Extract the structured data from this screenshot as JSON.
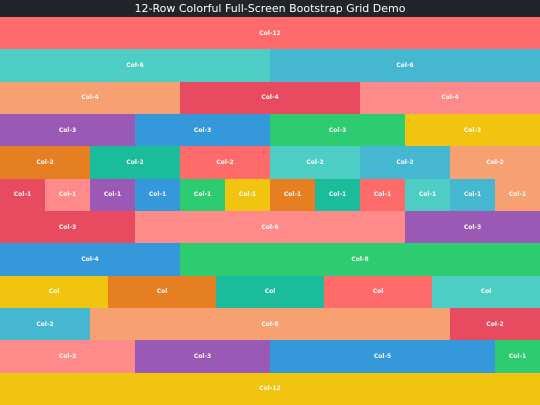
{
  "window": {
    "title": "12-Row Colorful Full-Screen Bootstrap Grid Demo"
  },
  "rows": [
    [
      {
        "label": "Col-12",
        "span": 12,
        "color": "#ff6b6b"
      }
    ],
    [
      {
        "label": "Col-6",
        "span": 6,
        "color": "#4ecdc4"
      },
      {
        "label": "Col-6",
        "span": 6,
        "color": "#45b7d1"
      }
    ],
    [
      {
        "label": "Col-4",
        "span": 4,
        "color": "#f7a072"
      },
      {
        "label": "Col-4",
        "span": 4,
        "color": "#e84a5f"
      },
      {
        "label": "Col-4",
        "span": 4,
        "color": "#ff8a8a"
      }
    ],
    [
      {
        "label": "Col-3",
        "span": 3,
        "color": "#9b59b6"
      },
      {
        "label": "Col-3",
        "span": 3,
        "color": "#3498db"
      },
      {
        "label": "Col-3",
        "span": 3,
        "color": "#2ecc71"
      },
      {
        "label": "Col-3",
        "span": 3,
        "color": "#f1c40f"
      }
    ],
    [
      {
        "label": "Col-2",
        "span": 2,
        "color": "#e67e22"
      },
      {
        "label": "Col-2",
        "span": 2,
        "color": "#1abc9c"
      },
      {
        "label": "Col-2",
        "span": 2,
        "color": "#ff6b6b"
      },
      {
        "label": "Col-2",
        "span": 2,
        "color": "#4ecdc4"
      },
      {
        "label": "Col-2",
        "span": 2,
        "color": "#45b7d1"
      },
      {
        "label": "Col-2",
        "span": 2,
        "color": "#f7a072"
      }
    ],
    [
      {
        "label": "Col-1",
        "span": 1,
        "color": "#e84a5f"
      },
      {
        "label": "Col-1",
        "span": 1,
        "color": "#ff8a8a"
      },
      {
        "label": "Col-1",
        "span": 1,
        "color": "#9b59b6"
      },
      {
        "label": "Col-1",
        "span": 1,
        "color": "#3498db"
      },
      {
        "label": "Col-1",
        "span": 1,
        "color": "#2ecc71"
      },
      {
        "label": "Col-1",
        "span": 1,
        "color": "#f1c40f"
      },
      {
        "label": "Col-1",
        "span": 1,
        "color": "#e67e22"
      },
      {
        "label": "Col-1",
        "span": 1,
        "color": "#1abc9c"
      },
      {
        "label": "Col-1",
        "span": 1,
        "color": "#ff6b6b"
      },
      {
        "label": "Col-1",
        "span": 1,
        "color": "#4ecdc4"
      },
      {
        "label": "Col-1",
        "span": 1,
        "color": "#45b7d1"
      },
      {
        "label": "Col-1",
        "span": 1,
        "color": "#f7a072"
      }
    ],
    [
      {
        "label": "Col-3",
        "span": 3,
        "color": "#e84a5f"
      },
      {
        "label": "Col-6",
        "span": 6,
        "color": "#ff8a8a"
      },
      {
        "label": "Col-3",
        "span": 3,
        "color": "#9b59b6"
      }
    ],
    [
      {
        "label": "Col-4",
        "span": 4,
        "color": "#3498db"
      },
      {
        "label": "Col-8",
        "span": 8,
        "color": "#2ecc71"
      }
    ],
    [
      {
        "label": "Col",
        "span": 1,
        "color": "#f1c40f"
      },
      {
        "label": "Col",
        "span": 1,
        "color": "#e67e22"
      },
      {
        "label": "Col",
        "span": 1,
        "color": "#1abc9c"
      },
      {
        "label": "Col",
        "span": 1,
        "color": "#ff6b6b"
      },
      {
        "label": "Col",
        "span": 1,
        "color": "#4ecdc4"
      }
    ],
    [
      {
        "label": "Col-2",
        "span": 2,
        "color": "#45b7d1"
      },
      {
        "label": "Col-8",
        "span": 8,
        "color": "#f7a072"
      },
      {
        "label": "Col-2",
        "span": 2,
        "color": "#e84a5f"
      }
    ],
    [
      {
        "label": "Col-3",
        "span": 3,
        "color": "#ff8a8a"
      },
      {
        "label": "Col-3",
        "span": 3,
        "color": "#9b59b6"
      },
      {
        "label": "Col-5",
        "span": 5,
        "color": "#3498db"
      },
      {
        "label": "Col-1",
        "span": 1,
        "color": "#2ecc71"
      }
    ],
    [
      {
        "label": "Col-12",
        "span": 12,
        "color": "#f1c40f"
      }
    ]
  ]
}
